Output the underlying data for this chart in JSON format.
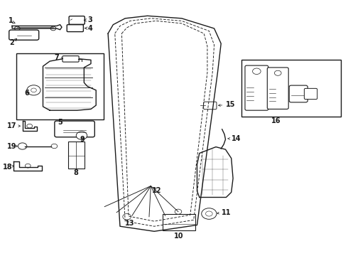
{
  "bg_color": "#ffffff",
  "line_color": "#1a1a1a"
}
